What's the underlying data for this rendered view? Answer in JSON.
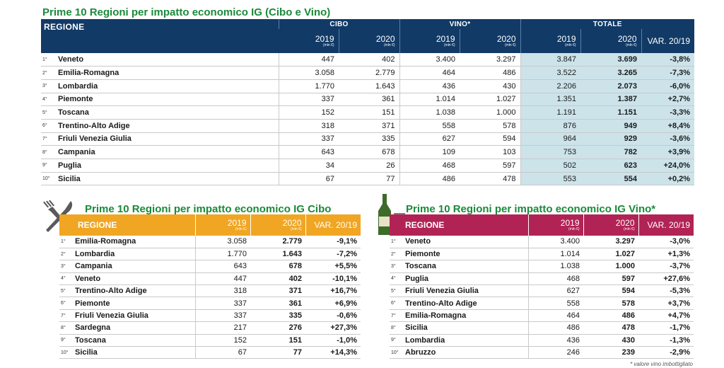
{
  "top": {
    "title": "Prime 10 Regioni per impatto economico IG (Cibo e Vino)",
    "header_region": "REGIONE",
    "groups": [
      "CIBO",
      "VINO*",
      "TOTALE"
    ],
    "year1": "2019",
    "year2": "2020",
    "unit": "(mln €)",
    "var_label": "VAR. 20/19",
    "rows": [
      {
        "rank": "1°",
        "name": "Veneto",
        "c19": "447",
        "c20": "402",
        "v19": "3.400",
        "v20": "3.297",
        "t19": "3.847",
        "t20": "3.699",
        "var": "-3,8%"
      },
      {
        "rank": "2°",
        "name": "Emilia-Romagna",
        "c19": "3.058",
        "c20": "2.779",
        "v19": "464",
        "v20": "486",
        "t19": "3.522",
        "t20": "3.265",
        "var": "-7,3%"
      },
      {
        "rank": "3°",
        "name": "Lombardia",
        "c19": "1.770",
        "c20": "1.643",
        "v19": "436",
        "v20": "430",
        "t19": "2.206",
        "t20": "2.073",
        "var": "-6,0%"
      },
      {
        "rank": "4°",
        "name": "Piemonte",
        "c19": "337",
        "c20": "361",
        "v19": "1.014",
        "v20": "1.027",
        "t19": "1.351",
        "t20": "1.387",
        "var": "+2,7%"
      },
      {
        "rank": "5°",
        "name": "Toscana",
        "c19": "152",
        "c20": "151",
        "v19": "1.038",
        "v20": "1.000",
        "t19": "1.191",
        "t20": "1.151",
        "var": "-3,3%"
      },
      {
        "rank": "6°",
        "name": "Trentino-Alto Adige",
        "c19": "318",
        "c20": "371",
        "v19": "558",
        "v20": "578",
        "t19": "876",
        "t20": "949",
        "var": "+8,4%"
      },
      {
        "rank": "7°",
        "name": "Friuli Venezia Giulia",
        "c19": "337",
        "c20": "335",
        "v19": "627",
        "v20": "594",
        "t19": "964",
        "t20": "929",
        "var": "-3,6%"
      },
      {
        "rank": "8°",
        "name": "Campania",
        "c19": "643",
        "c20": "678",
        "v19": "109",
        "v20": "103",
        "t19": "753",
        "t20": "782",
        "var": "+3,9%"
      },
      {
        "rank": "9°",
        "name": "Puglia",
        "c19": "34",
        "c20": "26",
        "v19": "468",
        "v20": "597",
        "t19": "502",
        "t20": "623",
        "var": "+24,0%"
      },
      {
        "rank": "10°",
        "name": "Sicilia",
        "c19": "67",
        "c20": "77",
        "v19": "486",
        "v20": "478",
        "t19": "553",
        "t20": "554",
        "var": "+0,2%"
      }
    ]
  },
  "cibo": {
    "title": "Prime 10 Regioni per impatto economico IG Cibo",
    "header_region": "REGIONE",
    "year1": "2019",
    "year2": "2020",
    "unit": "(mln €)",
    "var_label": "VAR. 20/19",
    "icon": "fork-knife-icon",
    "color": "#f0a623",
    "rows": [
      {
        "rank": "1°",
        "name": "Emilia-Romagna",
        "y19": "3.058",
        "y20": "2.779",
        "var": "-9,1%"
      },
      {
        "rank": "2°",
        "name": "Lombardia",
        "y19": "1.770",
        "y20": "1.643",
        "var": "-7,2%"
      },
      {
        "rank": "3°",
        "name": "Campania",
        "y19": "643",
        "y20": "678",
        "var": "+5,5%"
      },
      {
        "rank": "4°",
        "name": "Veneto",
        "y19": "447",
        "y20": "402",
        "var": "-10,1%"
      },
      {
        "rank": "5°",
        "name": "Trentino-Alto Adige",
        "y19": "318",
        "y20": "371",
        "var": "+16,7%"
      },
      {
        "rank": "6°",
        "name": "Piemonte",
        "y19": "337",
        "y20": "361",
        "var": "+6,9%"
      },
      {
        "rank": "7°",
        "name": "Friuli Venezia Giulia",
        "y19": "337",
        "y20": "335",
        "var": "-0,6%"
      },
      {
        "rank": "8°",
        "name": "Sardegna",
        "y19": "217",
        "y20": "276",
        "var": "+27,3%"
      },
      {
        "rank": "9°",
        "name": "Toscana",
        "y19": "152",
        "y20": "151",
        "var": "-1,0%"
      },
      {
        "rank": "10°",
        "name": "Sicilia",
        "y19": "67",
        "y20": "77",
        "var": "+14,3%"
      }
    ]
  },
  "vino": {
    "title": "Prime 10 Regioni per impatto economico IG Vino*",
    "header_region": "REGIONE",
    "year1": "2019",
    "year2": "2020",
    "unit": "(mln €)",
    "var_label": "VAR. 20/19",
    "icon": "wine-bottle-glass-icon",
    "color": "#b22355",
    "rows": [
      {
        "rank": "1°",
        "name": "Veneto",
        "y19": "3.400",
        "y20": "3.297",
        "var": "-3,0%"
      },
      {
        "rank": "2°",
        "name": "Piemonte",
        "y19": "1.014",
        "y20": "1.027",
        "var": "+1,3%"
      },
      {
        "rank": "3°",
        "name": "Toscana",
        "y19": "1.038",
        "y20": "1.000",
        "var": "-3,7%"
      },
      {
        "rank": "4°",
        "name": "Puglia",
        "y19": "468",
        "y20": "597",
        "var": "+27,6%"
      },
      {
        "rank": "5°",
        "name": "Friuli Venezia Giulia",
        "y19": "627",
        "y20": "594",
        "var": "-5,3%"
      },
      {
        "rank": "6°",
        "name": "Trentino-Alto Adige",
        "y19": "558",
        "y20": "578",
        "var": "+3,7%"
      },
      {
        "rank": "7°",
        "name": "Emilia-Romagna",
        "y19": "464",
        "y20": "486",
        "var": "+4,7%"
      },
      {
        "rank": "8°",
        "name": "Sicilia",
        "y19": "486",
        "y20": "478",
        "var": "-1,7%"
      },
      {
        "rank": "9°",
        "name": "Lombardia",
        "y19": "436",
        "y20": "430",
        "var": "-1,3%"
      },
      {
        "rank": "10°",
        "name": "Abruzzo",
        "y19": "246",
        "y20": "239",
        "var": "-2,9%"
      }
    ]
  },
  "footnote": "* valore vino imbottigliato",
  "colors": {
    "title": "#1a8a3a",
    "header_dark": "#123a66",
    "total_bg": "#cce3ea"
  }
}
